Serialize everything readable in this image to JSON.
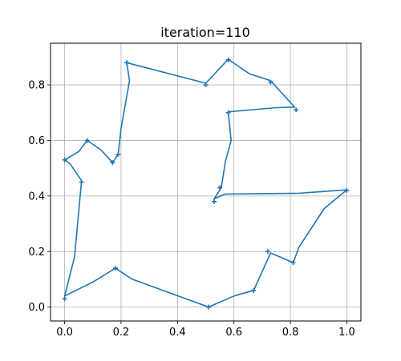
{
  "chart_data": {
    "type": "line",
    "title": "iteration=110",
    "xlabel": "",
    "ylabel": "",
    "xlim": [
      -0.05,
      1.05
    ],
    "ylim": [
      -0.05,
      0.95
    ],
    "xticks": [
      0.0,
      0.2,
      0.4,
      0.6,
      0.8,
      1.0
    ],
    "xtick_labels": [
      "0.0",
      "0.2",
      "0.4",
      "0.6",
      "0.8",
      "1.0"
    ],
    "yticks": [
      0.0,
      0.2,
      0.4,
      0.6,
      0.8
    ],
    "ytick_labels": [
      "0.0",
      "0.2",
      "0.4",
      "0.6",
      "0.8"
    ],
    "grid": true,
    "line_color": "#1f77b4",
    "marker_color": "#1f77b4",
    "marker": "plus",
    "points": [
      [
        0.22,
        0.88
      ],
      [
        0.5,
        0.8
      ],
      [
        0.58,
        0.89
      ],
      [
        0.73,
        0.81
      ],
      [
        0.82,
        0.71
      ],
      [
        0.58,
        0.7
      ],
      [
        0.55,
        0.43
      ],
      [
        0.53,
        0.38
      ],
      [
        1.0,
        0.42
      ],
      [
        0.81,
        0.16
      ],
      [
        0.72,
        0.2
      ],
      [
        0.67,
        0.06
      ],
      [
        0.51,
        0.0
      ],
      [
        0.18,
        0.14
      ],
      [
        0.0,
        0.03
      ],
      [
        0.06,
        0.45
      ],
      [
        0.0,
        0.53
      ],
      [
        0.08,
        0.6
      ],
      [
        0.17,
        0.52
      ],
      [
        0.19,
        0.55
      ]
    ],
    "path": [
      [
        0.22,
        0.88
      ],
      [
        0.5,
        0.806
      ],
      [
        0.58,
        0.892
      ],
      [
        0.655,
        0.84
      ],
      [
        0.73,
        0.815
      ],
      [
        0.815,
        0.72
      ],
      [
        0.75,
        0.718
      ],
      [
        0.58,
        0.703
      ],
      [
        0.59,
        0.6
      ],
      [
        0.57,
        0.525
      ],
      [
        0.555,
        0.43
      ],
      [
        0.53,
        0.39
      ],
      [
        0.57,
        0.407
      ],
      [
        0.83,
        0.41
      ],
      [
        1.0,
        0.422
      ],
      [
        0.92,
        0.355
      ],
      [
        0.83,
        0.215
      ],
      [
        0.81,
        0.16
      ],
      [
        0.73,
        0.195
      ],
      [
        0.67,
        0.06
      ],
      [
        0.6,
        0.04
      ],
      [
        0.51,
        0.0
      ],
      [
        0.24,
        0.1
      ],
      [
        0.18,
        0.14
      ],
      [
        0.1,
        0.09
      ],
      [
        0.0,
        0.04
      ],
      [
        0.035,
        0.18
      ],
      [
        0.06,
        0.455
      ],
      [
        0.02,
        0.515
      ],
      [
        0.0,
        0.53
      ],
      [
        0.05,
        0.56
      ],
      [
        0.08,
        0.6
      ],
      [
        0.13,
        0.565
      ],
      [
        0.17,
        0.52
      ],
      [
        0.19,
        0.55
      ],
      [
        0.2,
        0.645
      ],
      [
        0.23,
        0.815
      ],
      [
        0.22,
        0.88
      ]
    ]
  }
}
